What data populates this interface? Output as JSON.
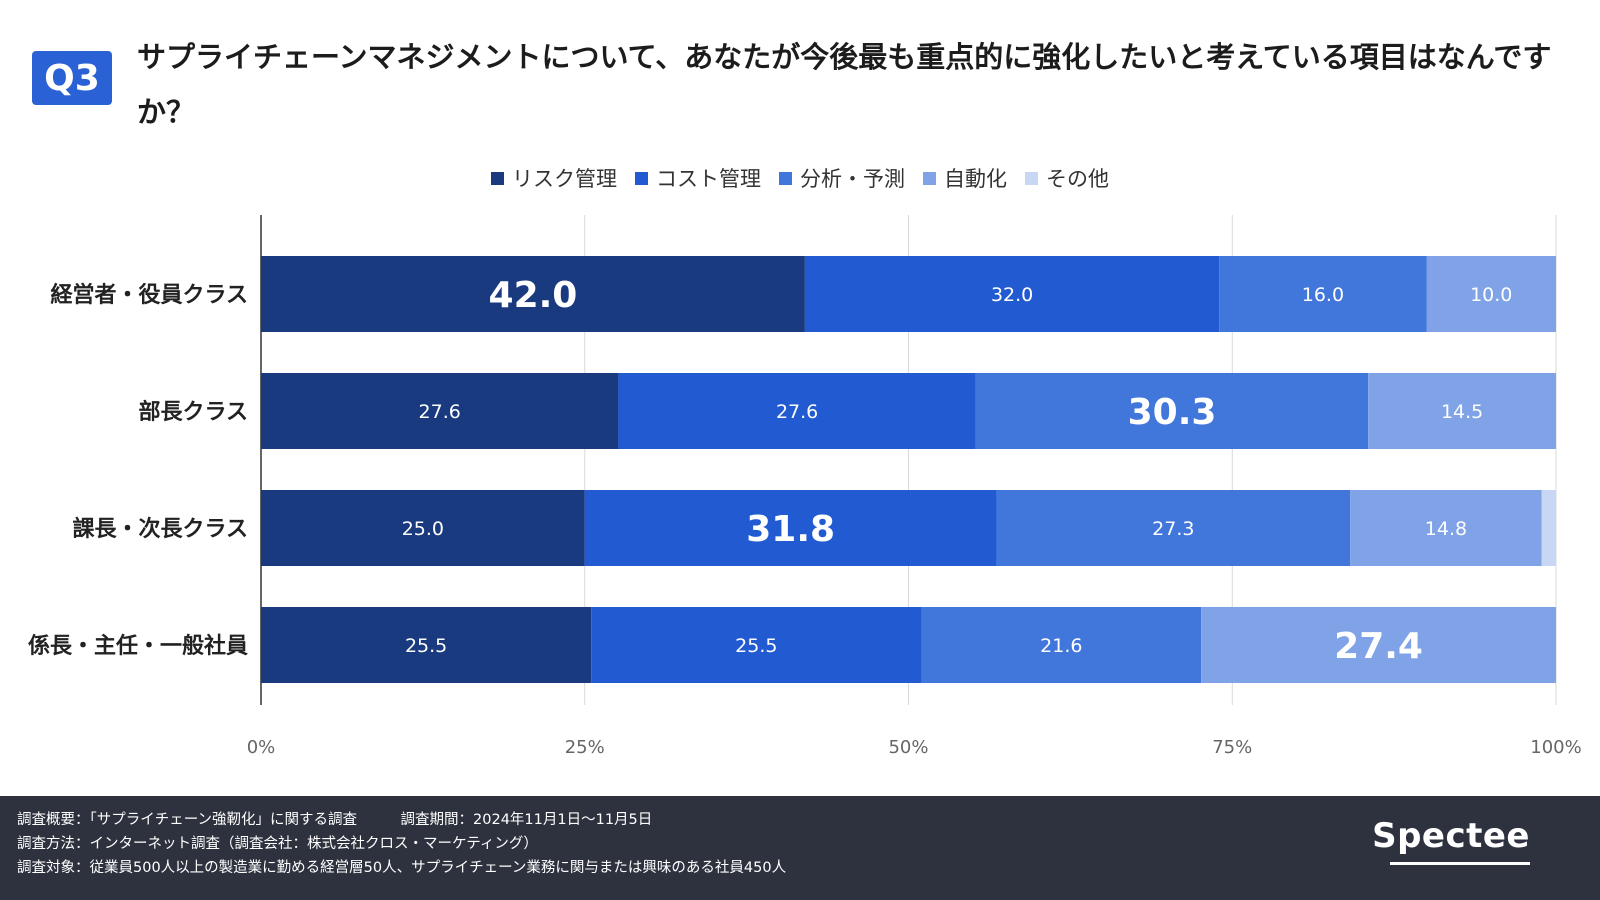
{
  "question": {
    "badge": "Q3",
    "text": "サプライチェーンマネジメントについて、あなたが今後最も重点的に強化したいと考えている項目はなんですか？"
  },
  "legend": [
    {
      "label": "リスク管理",
      "color": "#1a3a80"
    },
    {
      "label": "コスト管理",
      "color": "#225bd1"
    },
    {
      "label": "分析・予測",
      "color": "#4176db"
    },
    {
      "label": "自動化",
      "color": "#7fa3e6"
    },
    {
      "label": "その他",
      "color": "#c8d7f3"
    }
  ],
  "chart_data": {
    "type": "bar",
    "orientation": "horizontal",
    "stacked": true,
    "normalized": true,
    "categories": [
      "経営者・役員クラス",
      "部長クラス",
      "課長・次長クラス",
      "係長・主任・一般社員"
    ],
    "series": [
      {
        "name": "リスク管理",
        "values": [
          42.0,
          27.6,
          25.0,
          25.5
        ],
        "labels": [
          "42.0",
          "27.6",
          "25.0",
          "25.5"
        ]
      },
      {
        "name": "コスト管理",
        "values": [
          32.0,
          27.6,
          31.8,
          25.5
        ],
        "labels": [
          "32.0",
          "27.6",
          "31.8",
          "25.5"
        ]
      },
      {
        "name": "分析・予測",
        "values": [
          16.0,
          30.3,
          27.3,
          21.6
        ],
        "labels": [
          "16.0",
          "30.3",
          "27.3",
          "21.6"
        ]
      },
      {
        "name": "自動化",
        "values": [
          10.0,
          14.5,
          14.8,
          27.4
        ],
        "labels": [
          "10.0",
          "14.5",
          "14.8",
          "27.4"
        ]
      },
      {
        "name": "その他",
        "values": [
          0,
          0,
          1.1,
          0
        ],
        "labels": [
          "",
          "",
          "",
          ""
        ]
      }
    ],
    "highlight": [
      {
        "category": 0,
        "series": 0
      },
      {
        "category": 1,
        "series": 2
      },
      {
        "category": 2,
        "series": 1
      },
      {
        "category": 3,
        "series": 3
      }
    ],
    "xticks": [
      "0%",
      "25%",
      "50%",
      "75%",
      "100%"
    ],
    "xlim": [
      0,
      100
    ],
    "grid": true,
    "legend_position": "top-center"
  },
  "footer": {
    "line1": "調査概要：「サプライチェーン強靭化」に関する調査　　　調査期間：2024年11月1日〜11月5日",
    "line2": "調査方法：インターネット調査（調査会社：株式会社クロス・マーケティング）",
    "line3": "調査対象：従業員500人以上の製造業に勤める経営層50人、サプライチェーン業務に関与または興味のある社員450人",
    "logo": "Spectee"
  }
}
